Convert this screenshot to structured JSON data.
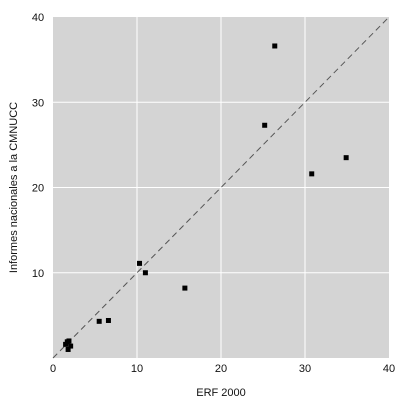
{
  "chart_data": {
    "type": "scatter",
    "xlabel": "ERF 2000",
    "ylabel": "Informes nacionales a la CMNUCC",
    "xlim": [
      0,
      40
    ],
    "ylim": [
      0,
      40
    ],
    "x_ticks": [
      "0",
      "10",
      "20",
      "30",
      "40"
    ],
    "y_ticks": [
      "10",
      "20",
      "30",
      "40"
    ],
    "grid": true,
    "reference_line": {
      "type": "identity",
      "style": "dashed",
      "from": [
        0,
        0
      ],
      "to": [
        40,
        40
      ]
    },
    "series": [
      {
        "points": [
          {
            "x": 1.5,
            "y": 1.6
          },
          {
            "x": 1.7,
            "y": 1.9
          },
          {
            "x": 1.9,
            "y": 2.0
          },
          {
            "x": 2.1,
            "y": 1.4
          },
          {
            "x": 1.8,
            "y": 1.0
          },
          {
            "x": 5.5,
            "y": 4.3
          },
          {
            "x": 6.6,
            "y": 4.4
          },
          {
            "x": 10.3,
            "y": 11.1
          },
          {
            "x": 11.0,
            "y": 10.0
          },
          {
            "x": 15.7,
            "y": 8.2
          },
          {
            "x": 25.2,
            "y": 27.3
          },
          {
            "x": 26.4,
            "y": 36.6
          },
          {
            "x": 30.8,
            "y": 21.6
          },
          {
            "x": 34.9,
            "y": 23.5
          }
        ]
      }
    ],
    "colors": {
      "plot_background": "#d4d4d4",
      "grid": "#ffffff",
      "marker": "#000000",
      "reference_line": "#555555"
    }
  }
}
